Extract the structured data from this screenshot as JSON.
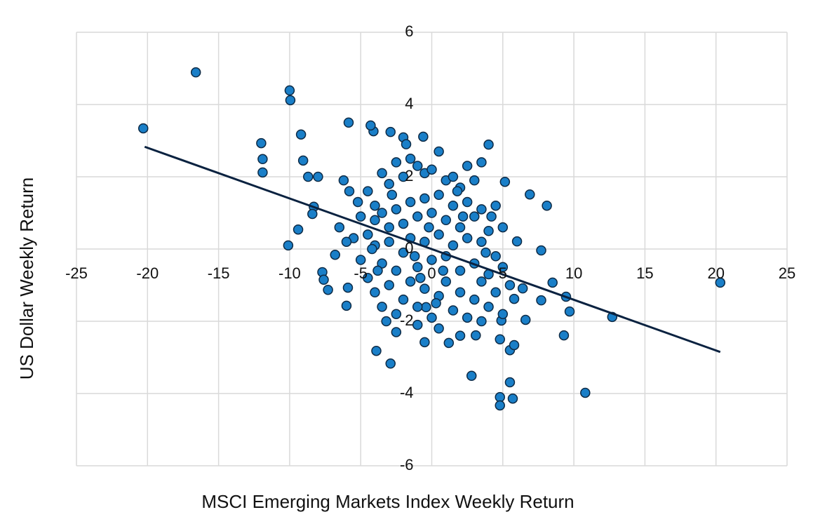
{
  "chart_data": {
    "type": "scatter",
    "x_label": "MSCI Emerging Markets Index Weekly Return",
    "y_label": "US Dollar Weekly Return",
    "xlim": [
      -25,
      25
    ],
    "xticks": [
      -25,
      -20,
      -15,
      -10,
      -5,
      0,
      5,
      10,
      15,
      20,
      25
    ],
    "ylim": [
      -6,
      6
    ],
    "yticks": [
      -6,
      -4,
      -2,
      0,
      2,
      4,
      6
    ],
    "grid": true,
    "color": "#1a7fc8",
    "x": [
      -20.3,
      -16.6,
      -10.0,
      -9.95,
      -12.0,
      -11.9,
      -11.9,
      -9.2,
      -9.05,
      -8.7,
      -8.0,
      -10.1,
      -9.4,
      -8.3,
      -8.4,
      -7.7,
      -7.6,
      -7.3,
      -6.8,
      -5.85,
      -6.0,
      -5.9,
      20.3,
      12.7,
      10.8,
      9.3,
      9.7,
      8.1,
      6.9,
      5.15,
      8.5,
      7.7,
      6.0,
      5.5,
      5.7,
      4.8,
      4.8,
      2.8,
      -2.9,
      -3.9,
      4.0,
      -0.6,
      -2.0,
      -2.9,
      -4.1,
      -4.3,
      -0.4,
      -0.5,
      5.8,
      6.6,
      7.7,
      9.45,
      6.4,
      5.5,
      5.8,
      3.1,
      4.9,
      -4.5,
      -4,
      -3.5,
      -3,
      -2.5,
      -2,
      -1.5,
      -1,
      -0.5,
      0,
      0.5,
      1,
      1.5,
      2,
      2.5,
      3,
      3.5,
      -5,
      -4.5,
      -4,
      -3.5,
      -3,
      -2.5,
      -2,
      -1.5,
      -1,
      -0.5,
      0,
      0.5,
      1,
      1.5,
      2,
      2.5,
      3,
      3.5,
      4,
      4.5,
      5,
      -5,
      -4.5,
      -4,
      -3.5,
      -3,
      -2.5,
      -2,
      -1.5,
      -1,
      -0.5,
      0,
      0.5,
      1,
      1.5,
      2,
      2.5,
      3,
      3.5,
      4,
      4.5,
      5,
      -4,
      -3.5,
      -3,
      -2.5,
      -2,
      -1.5,
      -1,
      -0.5,
      0,
      0.5,
      1,
      1.5,
      2,
      2.5,
      3,
      3.5,
      4,
      4.5,
      5,
      -2.5,
      -1,
      0.5,
      2,
      3.5,
      4.8,
      -3.2,
      -1.8,
      1.2,
      -0.2,
      0.8,
      -1.2,
      2.2,
      -2.8,
      3.8,
      -3.8,
      1.8,
      -0.8,
      0.3,
      -4.2,
      4.2,
      -5.5,
      -5.2,
      5.5,
      -6.2,
      -6.5,
      -5.8,
      -6
    ],
    "values": [
      3.34,
      4.89,
      4.39,
      4.12,
      2.93,
      2.49,
      2.12,
      3.17,
      2.45,
      2.0,
      2.0,
      0.1,
      0.54,
      1.17,
      0.97,
      -0.64,
      -0.85,
      -1.13,
      -0.16,
      3.5,
      -1.57,
      -1.07,
      -0.93,
      -1.88,
      -3.98,
      -2.39,
      -1.73,
      1.2,
      1.51,
      1.86,
      -0.93,
      -0.04,
      0.21,
      -3.69,
      -4.14,
      -4.1,
      -4.33,
      -3.51,
      -3.17,
      -2.82,
      2.89,
      3.11,
      3.09,
      3.24,
      3.26,
      3.42,
      -1.61,
      -2.58,
      -1.38,
      -1.96,
      -1.42,
      -1.32,
      -1.09,
      -2.8,
      -2.66,
      -2.39,
      -1.98,
      1.6,
      1.2,
      2.1,
      1.8,
      2.4,
      2.0,
      2.5,
      2.3,
      2.1,
      2.2,
      2.7,
      1.9,
      2.0,
      1.7,
      2.3,
      1.9,
      2.4,
      0.9,
      0.4,
      0.8,
      1.0,
      0.6,
      1.1,
      0.7,
      1.3,
      0.9,
      1.4,
      1.0,
      1.5,
      0.8,
      1.2,
      0.6,
      1.3,
      0.9,
      1.1,
      0.5,
      1.2,
      0.6,
      -0.3,
      -0.8,
      0.1,
      -0.4,
      0.2,
      -0.6,
      -0.1,
      0.3,
      -0.5,
      0.2,
      -0.3,
      0.4,
      -0.2,
      0.1,
      -0.6,
      0.3,
      -0.4,
      0.2,
      -0.7,
      -0.2,
      -0.5,
      -1.2,
      -1.6,
      -1.0,
      -1.8,
      -1.4,
      -0.9,
      -1.6,
      -1.1,
      -1.9,
      -1.3,
      -0.9,
      -1.7,
      -1.2,
      -1.9,
      -1.4,
      -0.9,
      -1.6,
      -1.2,
      -1.8,
      -2.3,
      -2.1,
      -2.2,
      -2.4,
      -2.0,
      -2.5,
      -2.0,
      2.9,
      -2.6,
      0.6,
      -0.6,
      -0.2,
      0.9,
      1.5,
      -0.1,
      -0.6,
      1.6,
      -0.8,
      -1.5,
      0.0,
      0.9,
      0.3,
      1.3,
      -1.0,
      1.9,
      0.6,
      1.6,
      0.2
    ],
    "trendline": {
      "color": "#0a2240",
      "x": [
        -20.2,
        20.3
      ],
      "values": [
        2.83,
        -2.85
      ]
    }
  }
}
